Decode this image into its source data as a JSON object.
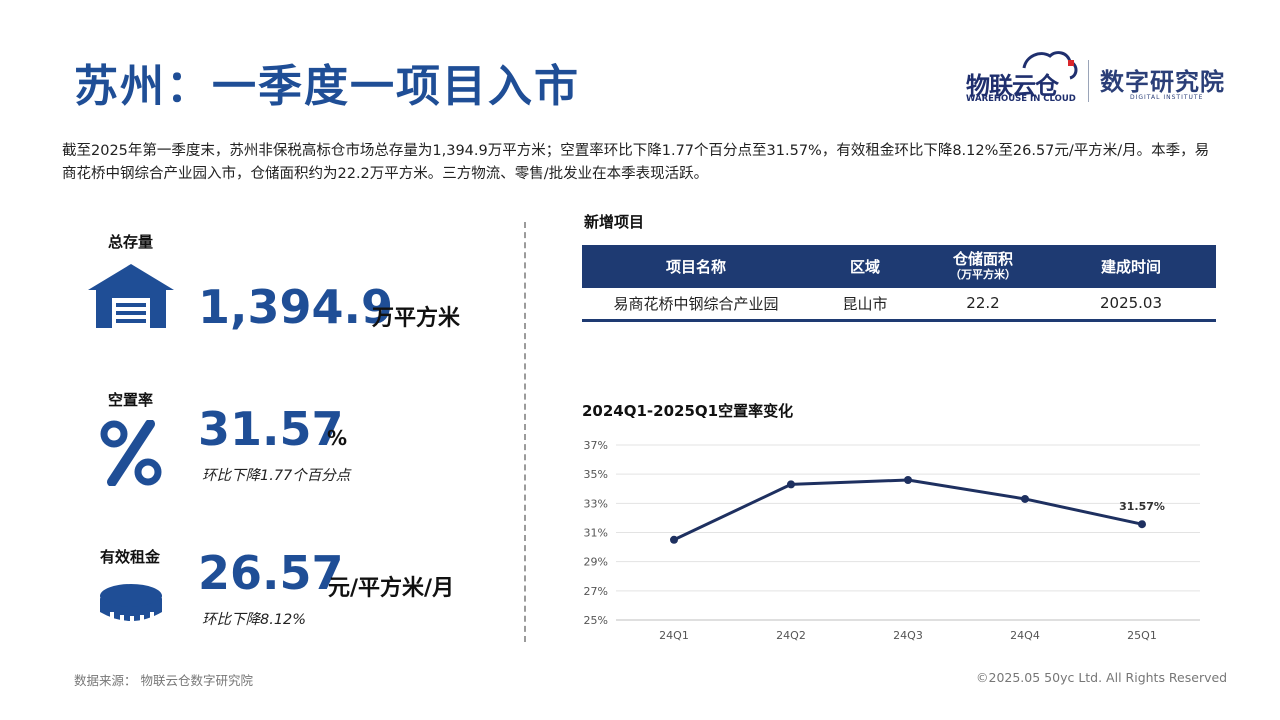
{
  "title": "苏州：一季度一项目入市",
  "logo": {
    "cn": "物联云仓",
    "en": "WAREHOUSE IN CLOUD",
    "institute": "数字研究院",
    "institute_en": "DIGITAL INSTITUTE"
  },
  "summary": "截至2025年第一季度末，苏州非保税高标仓市场总存量为1,394.9万平方米；空置率环比下降1.77个百分点至31.57%，有效租金环比下降8.12%至26.57元/平方米/月。本季，易商花桥中钢综合产业园入市，仓储面积约为22.2万平方米。三方物流、零售/批发业在本季表现活跃。",
  "kpis": {
    "stock": {
      "label": "总存量",
      "value": "1,394.9",
      "unit": "万平方米",
      "icon": "warehouse-icon"
    },
    "vacancy": {
      "label": "空置率",
      "value": "31.57",
      "unit": "%",
      "note": "环比下降1.77个百分点",
      "icon": "percent-icon"
    },
    "rent": {
      "label": "有效租金",
      "value": "26.57",
      "unit": "元/平方米/月",
      "note": "环比下降8.12%",
      "icon": "coin-icon"
    }
  },
  "projects": {
    "title": "新增项目",
    "headers": {
      "name": "项目名称",
      "region": "区域",
      "area": "仓储面积",
      "area_sub": "（万平方米）",
      "date": "建成时间"
    },
    "rows": [
      {
        "name": "易商花桥中钢综合产业园",
        "region": "昆山市",
        "area": "22.2",
        "date": "2025.03"
      }
    ]
  },
  "chart_title": "2024Q1-2025Q1空置率变化",
  "chart_data": {
    "type": "line",
    "title": "2024Q1-2025Q1空置率变化",
    "categories": [
      "24Q1",
      "24Q2",
      "24Q3",
      "24Q4",
      "25Q1"
    ],
    "values": [
      30.5,
      34.3,
      34.6,
      33.3,
      31.57
    ],
    "ylim": [
      25,
      37
    ],
    "yticks": [
      "37%",
      "35%",
      "33%",
      "31%",
      "29%",
      "27%",
      "25%"
    ],
    "ytick_values": [
      37,
      35,
      33,
      31,
      29,
      27,
      25
    ],
    "data_labels": [
      {
        "index": 4,
        "text": "31.57%"
      }
    ],
    "grid": true,
    "line_color": "#1e3060"
  },
  "footer": {
    "source": "数据来源：  物联云仓数字研究院",
    "copyright": "©2025.05 50yc Ltd. All Rights Reserved"
  }
}
